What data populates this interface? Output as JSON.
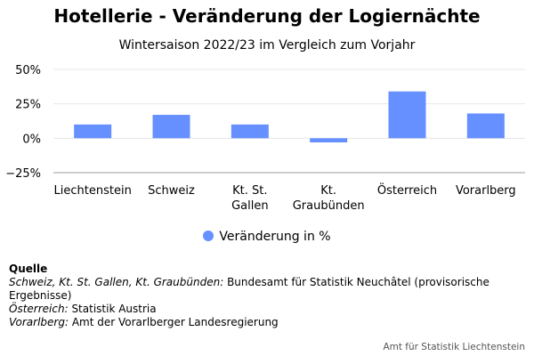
{
  "colors": {
    "bar": "#6690ff",
    "grid": "#e6e6e6",
    "axis": "#999999"
  },
  "chart_data": {
    "type": "bar",
    "title": "Hotellerie - Veränderung der Logiernächte",
    "subtitle": "Wintersaison 2022/23 im Vergleich zum Vorjahr",
    "categories": [
      [
        "Liechtenstein"
      ],
      [
        "Schweiz"
      ],
      [
        "Kt. St.",
        "Gallen"
      ],
      [
        "Kt.",
        "Graubünden"
      ],
      [
        "Österreich"
      ],
      [
        "Vorarlberg"
      ]
    ],
    "series": [
      {
        "name": "Veränderung in %",
        "values": [
          10,
          17,
          10,
          -3,
          34,
          18
        ]
      }
    ],
    "ylim": [
      -25,
      50
    ],
    "yticks": [
      -25,
      0,
      25,
      50
    ],
    "ytick_labels": [
      "−25%",
      "0%",
      "25%",
      "50%"
    ],
    "grid": true,
    "legend": "bottom-center"
  },
  "source": {
    "heading": "Quelle",
    "lines": [
      {
        "label": "Schweiz, Kt. St. Gallen, Kt. Graubünden:",
        "text": " Bundesamt für Statistik Neuchâtel (provisorische Ergebnisse)"
      },
      {
        "label": "Österreich:",
        "text": " Statistik Austria"
      },
      {
        "label": "Vorarlberg:",
        "text": " Amt der Vorarlberger Landesregierung"
      }
    ]
  },
  "credit": "Amt für Statistik Liechtenstein"
}
